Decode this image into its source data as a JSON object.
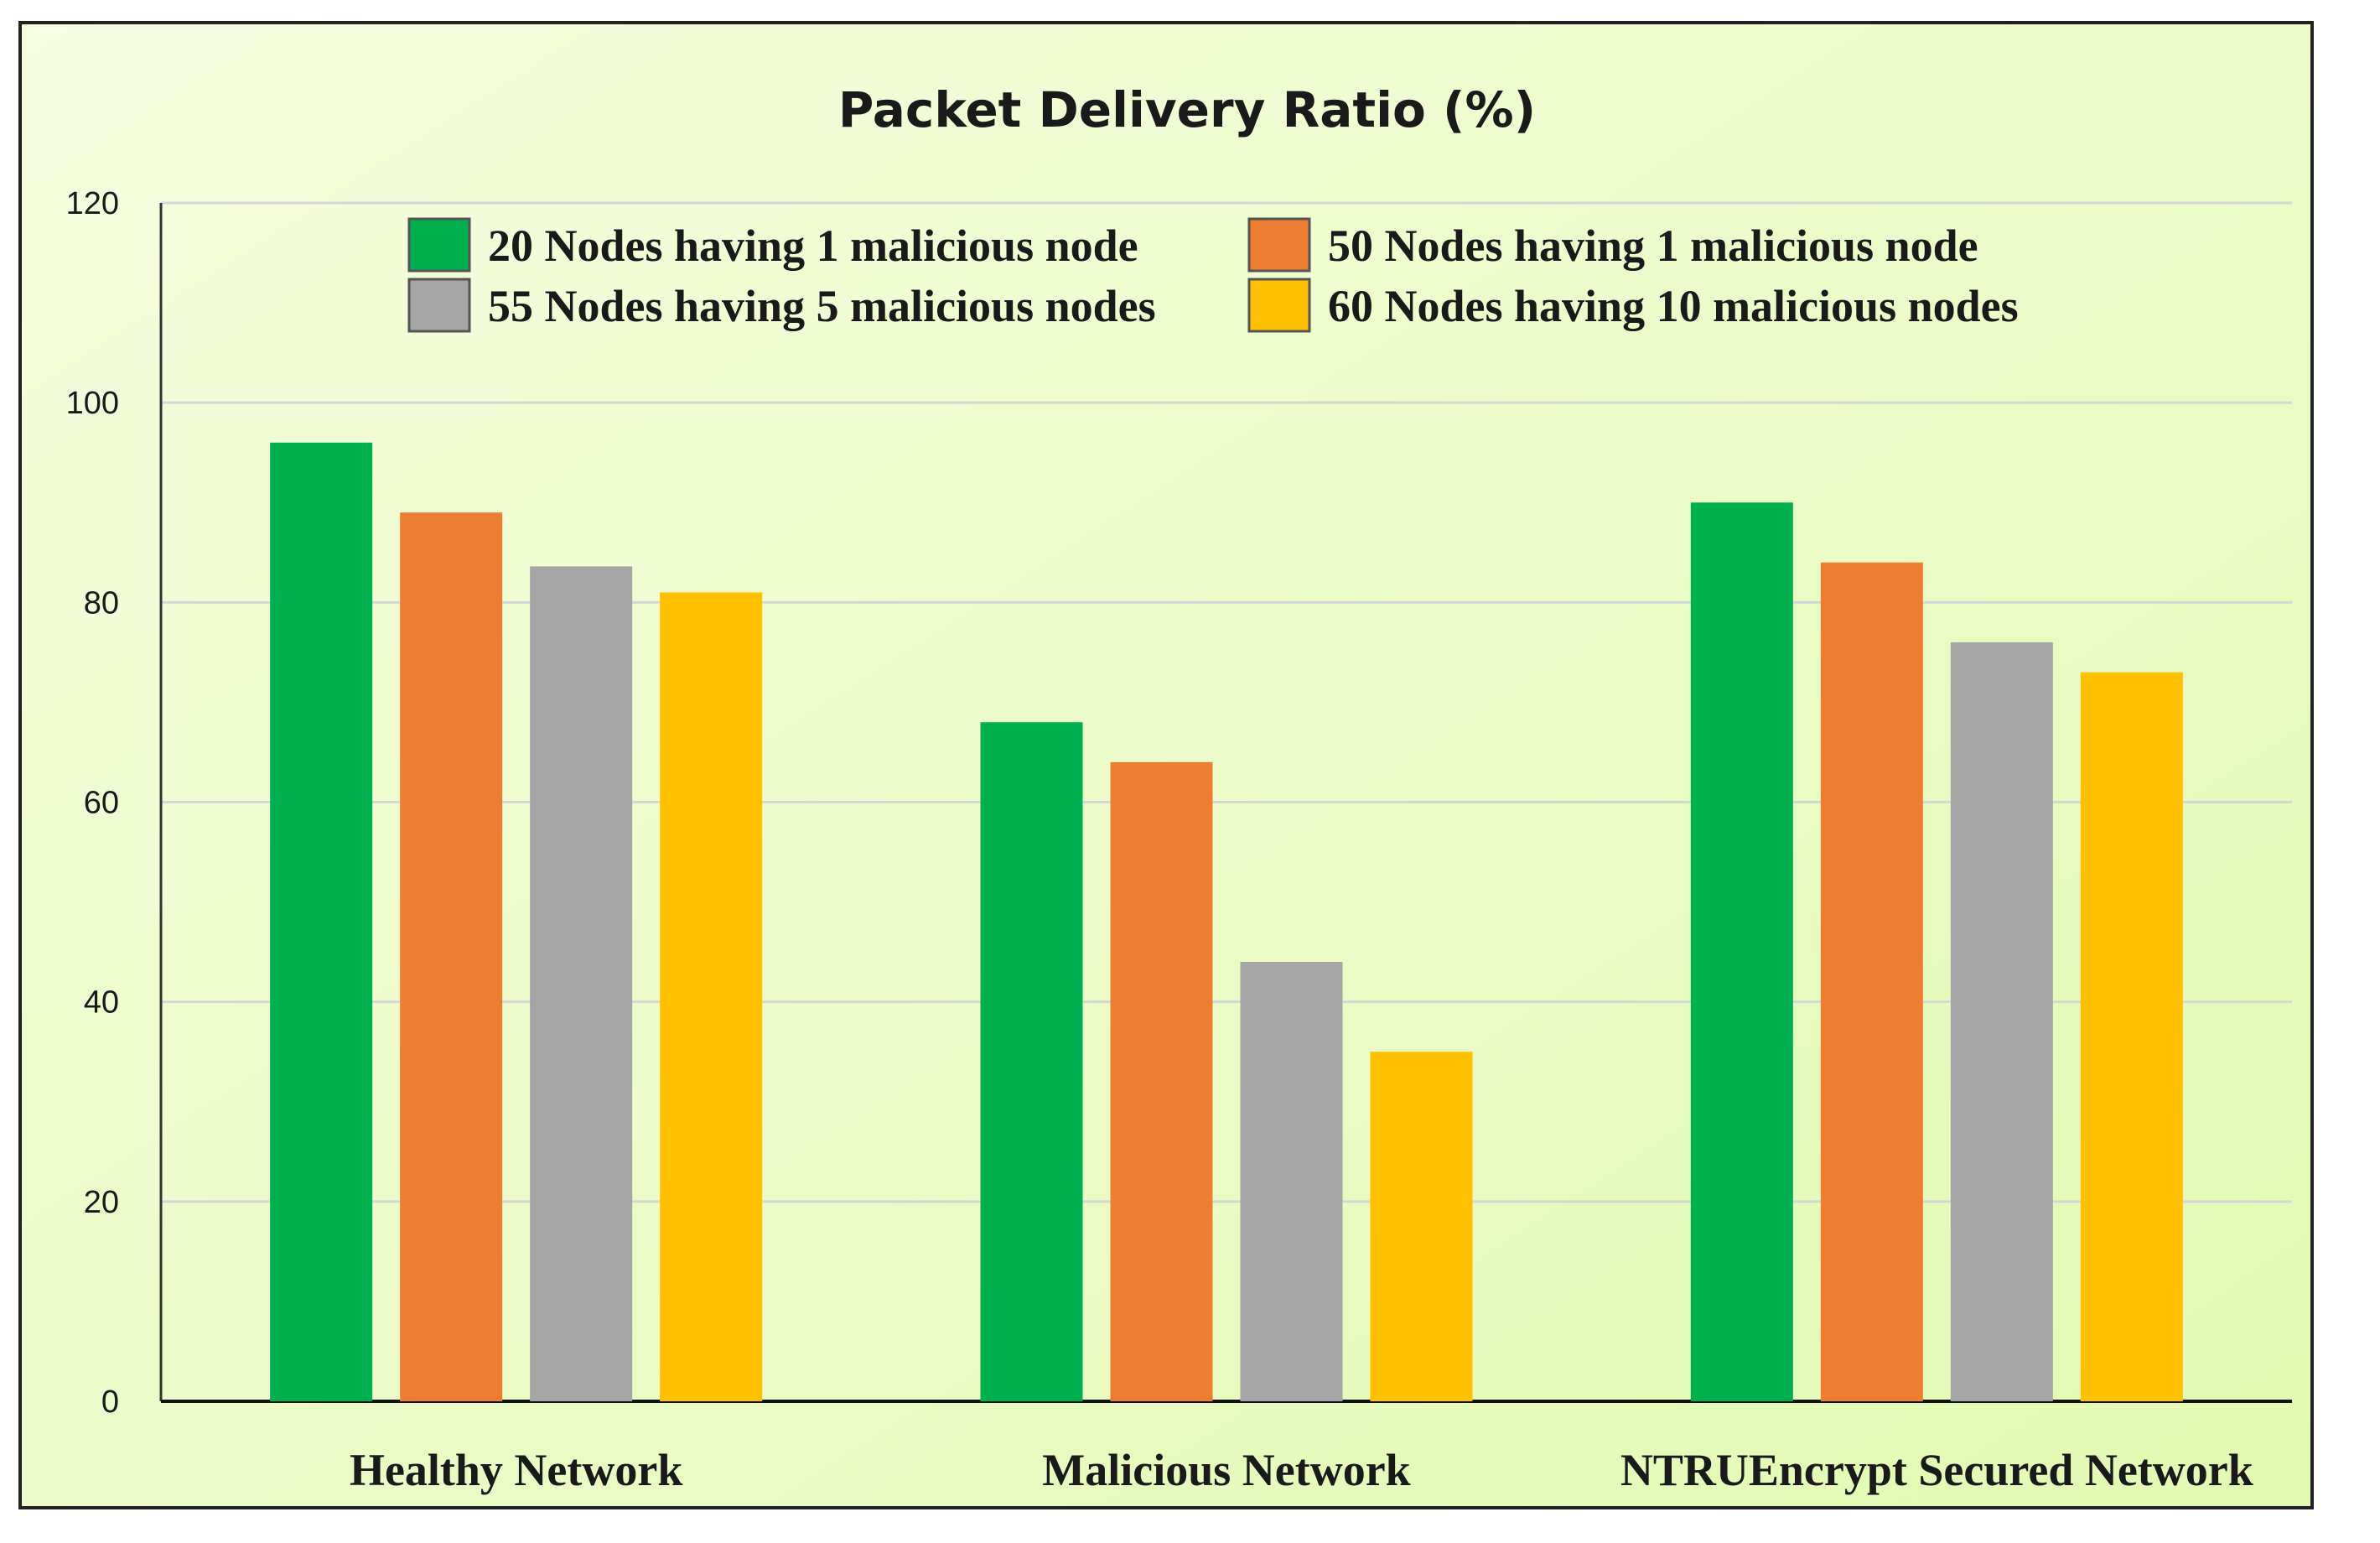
{
  "chart_data": {
    "type": "bar",
    "title": "Packet Delivery Ratio (%)",
    "xlabel": "",
    "ylabel": "",
    "categories": [
      "Healthy Network",
      "Malicious Network",
      "NTRUEncrypt  Secured Network"
    ],
    "ylim": [
      0,
      120
    ],
    "yticks": [
      0,
      20,
      40,
      60,
      80,
      100,
      120
    ],
    "grid": true,
    "legend_position": "top",
    "series": [
      {
        "name": "20 Nodes having 1 malicious node",
        "color": "#00b050",
        "values": [
          96,
          68,
          90
        ]
      },
      {
        "name": "50 Nodes having 1 malicious node",
        "color": "#ed7d31",
        "values": [
          89,
          64,
          84
        ]
      },
      {
        "name": "55 Nodes having 5 malicious nodes",
        "color": "#a5a5a5",
        "values": [
          83.6,
          44,
          76
        ]
      },
      {
        "name": "60 Nodes having 10 malicious nodes",
        "color": "#ffc000",
        "values": [
          81,
          35,
          73
        ]
      }
    ],
    "background_colors": [
      "#f6fde0",
      "#e2f9b2"
    ]
  }
}
